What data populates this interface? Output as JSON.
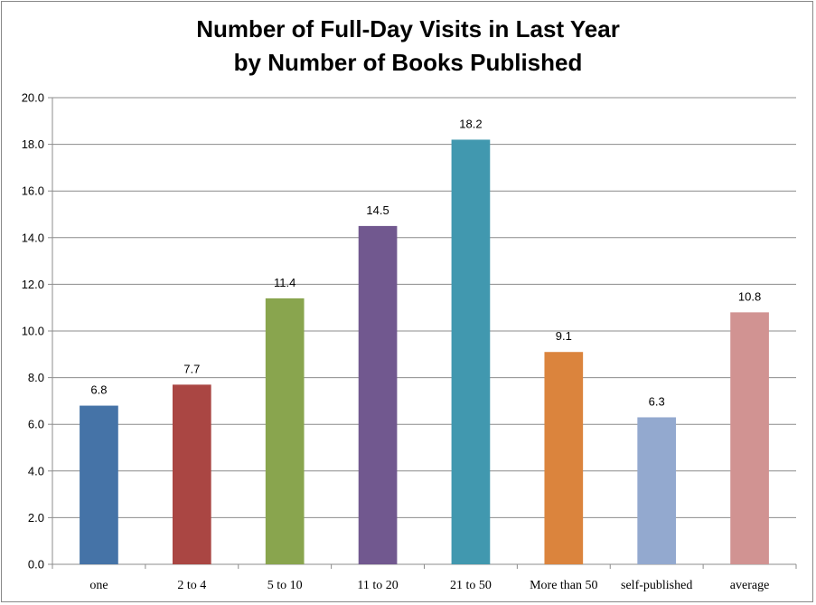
{
  "chart_data": {
    "type": "bar",
    "title_line1": "Number of Full-Day Visits in Last Year",
    "title_line2": "by Number of Books Published",
    "xlabel": "",
    "ylabel": "",
    "ylim": [
      0,
      20
    ],
    "y_ticks": [
      "0.0",
      "2.0",
      "4.0",
      "6.0",
      "8.0",
      "10.0",
      "12.0",
      "14.0",
      "16.0",
      "18.0",
      "20.0"
    ],
    "grid": true,
    "legend": "none",
    "categories": [
      "one",
      "2 to 4",
      "5 to 10",
      "11 to 20",
      "21 to 50",
      "More than 50",
      "self-published",
      "average"
    ],
    "values": [
      6.8,
      7.7,
      11.4,
      14.5,
      18.2,
      9.1,
      6.3,
      10.8
    ],
    "data_labels": [
      "6.8",
      "7.7",
      "11.4",
      "14.5",
      "18.2",
      "9.1",
      "6.3",
      "10.8"
    ],
    "colors": [
      "#4573A7",
      "#AA4643",
      "#89A54E",
      "#71588F",
      "#4198AF",
      "#DB843D",
      "#93A9CF",
      "#D19392"
    ]
  }
}
